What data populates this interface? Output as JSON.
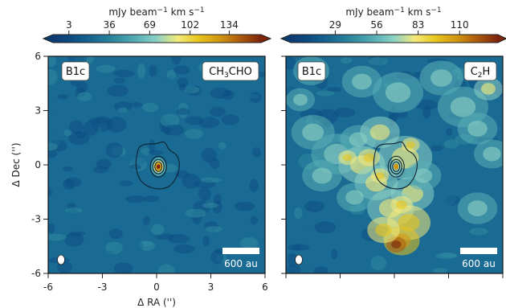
{
  "chart_data": [
    {
      "type": "heatmap",
      "panel": "left",
      "source_label": "B1c",
      "molecule": {
        "main": "CH",
        "sub1": "3",
        "rest": "CHO"
      },
      "colorbar": {
        "label_prefix": "mJy beam",
        "label_exp": "−1",
        "label_suffix": " km s",
        "label_exp2": "−1",
        "ticks": [
          3,
          36,
          69,
          102,
          134
        ],
        "range": [
          -10,
          160
        ],
        "extend": "both"
      },
      "x": {
        "label": "Δ RA ('')",
        "ticks": [
          -6,
          -3,
          0,
          3,
          6
        ],
        "range": [
          -6,
          6
        ]
      },
      "y": {
        "label": "Δ Dec ('')",
        "ticks": [
          -6,
          -3,
          0,
          3,
          6
        ],
        "range": [
          -6,
          6
        ]
      },
      "source_peak": {
        "x": 0.1,
        "y": -0.1
      },
      "scale_bar": "600 au"
    },
    {
      "type": "heatmap",
      "panel": "right",
      "source_label": "B1c",
      "molecule": {
        "main": "C",
        "sub1": "2",
        "rest": "H"
      },
      "colorbar": {
        "label_prefix": "mJy beam",
        "label_exp": "−1",
        "label_suffix": " km s",
        "label_exp2": "−1",
        "ticks": [
          29,
          56,
          83,
          110
        ],
        "range": [
          0,
          135
        ],
        "extend": "both"
      },
      "x": {
        "ticks": [
          -6,
          -3,
          0,
          3,
          6
        ],
        "range": [
          -6,
          6
        ]
      },
      "y": {
        "ticks": [
          -6,
          -3,
          0,
          3,
          6
        ],
        "range": [
          -6,
          6
        ]
      },
      "source_peak": {
        "x": 0.1,
        "y": -0.1
      },
      "scale_bar": "600 au"
    }
  ],
  "colors": {
    "colormap": [
      "#0b3a6e",
      "#0d4f85",
      "#1a6b93",
      "#2f8aa0",
      "#58aeb4",
      "#8ed1c4",
      "#f4ea7a",
      "#e7c51e",
      "#d19612",
      "#ad5a0d",
      "#7a250c"
    ]
  }
}
